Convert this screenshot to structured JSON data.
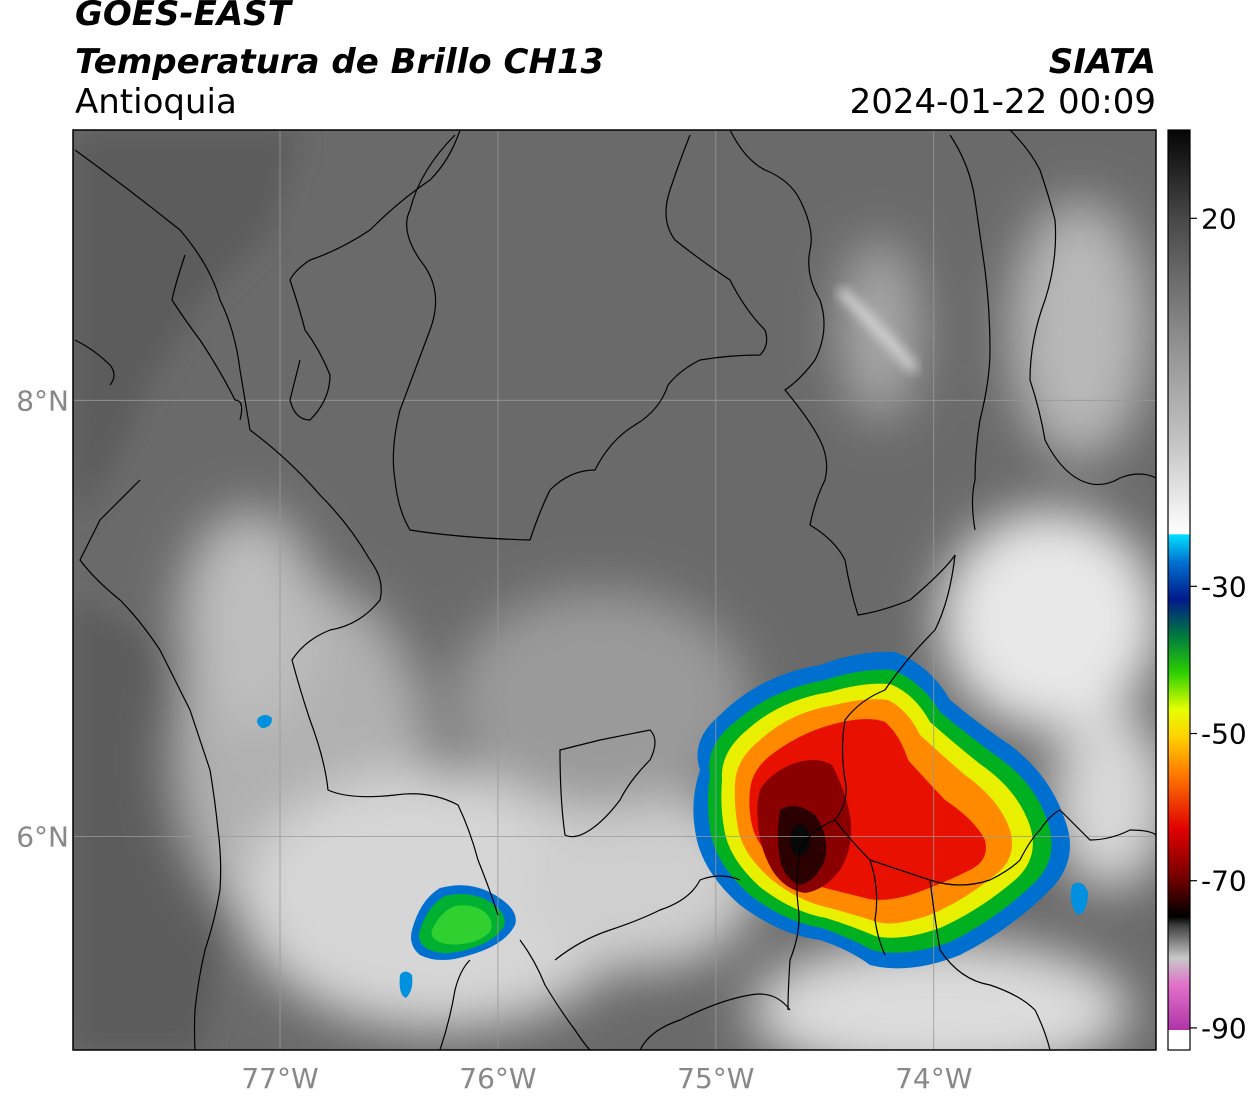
{
  "header": {
    "title": "GOES-EAST",
    "subtitle": "Temperatura de Brillo CH13",
    "region": "Antioquia",
    "organization": "SIATA",
    "datetime": "2024-01-22 00:09"
  },
  "map": {
    "lon_range": [
      -77.95,
      -72.98
    ],
    "lat_range": [
      5.02,
      9.24
    ],
    "lon_ticks": [
      {
        "value": -77,
        "label": "77°W"
      },
      {
        "value": -76,
        "label": "76°W"
      },
      {
        "value": -75,
        "label": "75°W"
      },
      {
        "value": -74,
        "label": "74°W"
      }
    ],
    "lat_ticks": [
      {
        "value": 8,
        "label": "8°N"
      },
      {
        "value": 6,
        "label": "6°N"
      }
    ],
    "colors": {
      "background_gray": "#6a6a6a",
      "coast_gray": "#5e5e5e",
      "boundary": "#000000",
      "gridline": "#999999"
    }
  },
  "colorbar": {
    "range": [
      -93,
      32
    ],
    "ticks": [
      {
        "value": 20,
        "label": "20"
      },
      {
        "value": -30,
        "label": "-30"
      },
      {
        "value": -50,
        "label": "-50"
      },
      {
        "value": -70,
        "label": "-70"
      },
      {
        "value": -90,
        "label": "-90"
      }
    ]
  }
}
